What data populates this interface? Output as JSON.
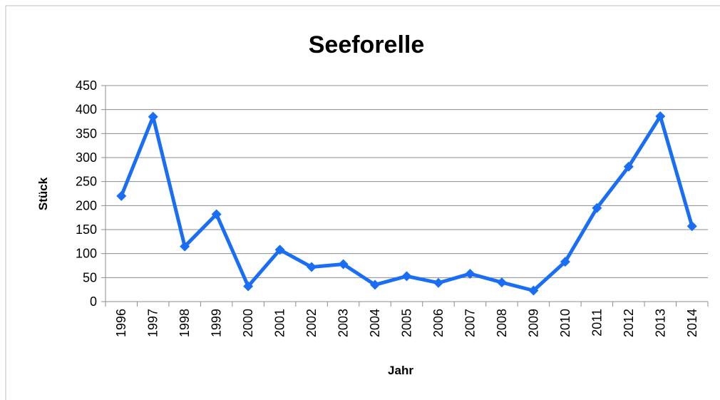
{
  "chart_data": {
    "type": "line",
    "title": "Seeforelle",
    "x_label": "Jahr",
    "y_label": "Stück",
    "categories": [
      "1996",
      "1997",
      "1998",
      "1999",
      "2000",
      "2001",
      "2002",
      "2003",
      "2004",
      "2005",
      "2006",
      "2007",
      "2008",
      "2009",
      "2010",
      "2011",
      "2012",
      "2013",
      "2014"
    ],
    "series": [
      {
        "name": "Seeforelle",
        "color": "#1a6ef5",
        "values": [
          220,
          385,
          115,
          182,
          32,
          108,
          72,
          78,
          35,
          53,
          39,
          58,
          40,
          23,
          83,
          195,
          281,
          386,
          157
        ]
      }
    ],
    "ylim": [
      0,
      450
    ],
    "yticks": [
      0,
      50,
      100,
      150,
      200,
      250,
      300,
      350,
      400,
      450
    ],
    "grid": true
  }
}
